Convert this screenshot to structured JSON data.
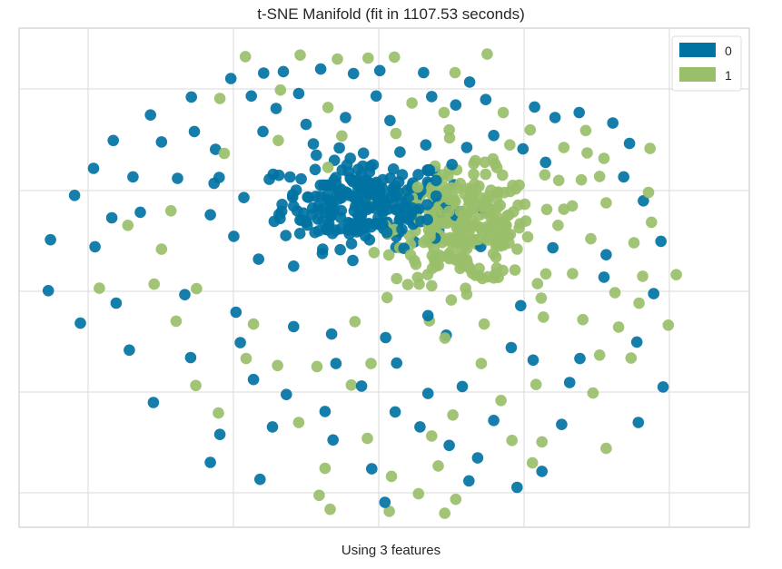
{
  "chart_data": {
    "type": "scatter",
    "title": "t-SNE Manifold (fit in 1107.53 seconds)",
    "xlabel": "Using 3 features",
    "ylabel": "",
    "xlim": [
      0,
      100
    ],
    "ylim": [
      0,
      100
    ],
    "grid": true,
    "legend_position": "top-right",
    "series": [
      {
        "name": "0",
        "color": "#0173a3",
        "points": []
      },
      {
        "name": "1",
        "color": "#9abf6a",
        "points": []
      }
    ],
    "ring_markers": [
      {
        "x": 29.0,
        "y": 89.9,
        "label": 0
      },
      {
        "x": 33.5,
        "y": 91.0,
        "label": 0
      },
      {
        "x": 36.2,
        "y": 91.3,
        "label": 0
      },
      {
        "x": 41.3,
        "y": 91.8,
        "label": 0
      },
      {
        "x": 45.8,
        "y": 90.9,
        "label": 0
      },
      {
        "x": 49.4,
        "y": 91.5,
        "label": 0
      },
      {
        "x": 55.4,
        "y": 91.1,
        "label": 0
      },
      {
        "x": 61.7,
        "y": 89.2,
        "label": 0
      },
      {
        "x": 23.6,
        "y": 86.2,
        "label": 0
      },
      {
        "x": 31.8,
        "y": 86.4,
        "label": 0
      },
      {
        "x": 35.2,
        "y": 83.9,
        "label": 0
      },
      {
        "x": 38.3,
        "y": 86.9,
        "label": 0
      },
      {
        "x": 48.9,
        "y": 86.4,
        "label": 0
      },
      {
        "x": 56.5,
        "y": 86.3,
        "label": 0
      },
      {
        "x": 59.8,
        "y": 84.6,
        "label": 0
      },
      {
        "x": 63.9,
        "y": 85.7,
        "label": 0
      },
      {
        "x": 70.6,
        "y": 84.2,
        "label": 0
      },
      {
        "x": 76.7,
        "y": 83.1,
        "label": 0
      },
      {
        "x": 81.3,
        "y": 81.0,
        "label": 0
      },
      {
        "x": 18.0,
        "y": 82.6,
        "label": 0
      },
      {
        "x": 24.0,
        "y": 79.3,
        "label": 0
      },
      {
        "x": 33.4,
        "y": 79.3,
        "label": 0
      },
      {
        "x": 39.3,
        "y": 80.7,
        "label": 0
      },
      {
        "x": 44.7,
        "y": 82.1,
        "label": 0
      },
      {
        "x": 50.8,
        "y": 81.5,
        "label": 0
      },
      {
        "x": 65.0,
        "y": 78.5,
        "label": 0
      },
      {
        "x": 73.4,
        "y": 82.1,
        "label": 0
      },
      {
        "x": 83.6,
        "y": 76.9,
        "label": 0
      },
      {
        "x": 12.9,
        "y": 77.5,
        "label": 0
      },
      {
        "x": 19.5,
        "y": 77.2,
        "label": 0
      },
      {
        "x": 26.9,
        "y": 75.7,
        "label": 0
      },
      {
        "x": 40.3,
        "y": 76.8,
        "label": 0
      },
      {
        "x": 55.7,
        "y": 76.6,
        "label": 0
      },
      {
        "x": 61.3,
        "y": 76.1,
        "label": 0
      },
      {
        "x": 69.0,
        "y": 75.8,
        "label": 0
      },
      {
        "x": 72.1,
        "y": 73.1,
        "label": 0
      },
      {
        "x": 82.8,
        "y": 70.2,
        "label": 0
      },
      {
        "x": 10.2,
        "y": 71.9,
        "label": 0
      },
      {
        "x": 15.6,
        "y": 70.2,
        "label": 0
      },
      {
        "x": 21.7,
        "y": 69.9,
        "label": 0
      },
      {
        "x": 26.7,
        "y": 68.9,
        "label": 0
      },
      {
        "x": 34.8,
        "y": 70.7,
        "label": 0
      },
      {
        "x": 85.5,
        "y": 65.4,
        "label": 0
      },
      {
        "x": 7.6,
        "y": 66.5,
        "label": 0
      },
      {
        "x": 12.7,
        "y": 62.0,
        "label": 0
      },
      {
        "x": 16.6,
        "y": 63.1,
        "label": 0
      },
      {
        "x": 26.2,
        "y": 62.6,
        "label": 0
      },
      {
        "x": 29.4,
        "y": 58.3,
        "label": 0
      },
      {
        "x": 80.4,
        "y": 54.6,
        "label": 0
      },
      {
        "x": 4.3,
        "y": 57.6,
        "label": 0
      },
      {
        "x": 10.4,
        "y": 56.2,
        "label": 0
      },
      {
        "x": 32.8,
        "y": 53.7,
        "label": 0
      },
      {
        "x": 37.6,
        "y": 52.3,
        "label": 0
      },
      {
        "x": 73.1,
        "y": 56.0,
        "label": 0
      },
      {
        "x": 87.9,
        "y": 57.3,
        "label": 0
      },
      {
        "x": 4.0,
        "y": 47.4,
        "label": 0
      },
      {
        "x": 8.4,
        "y": 40.9,
        "label": 0
      },
      {
        "x": 13.3,
        "y": 44.9,
        "label": 0
      },
      {
        "x": 22.7,
        "y": 46.6,
        "label": 0
      },
      {
        "x": 29.7,
        "y": 43.1,
        "label": 0
      },
      {
        "x": 37.6,
        "y": 40.2,
        "label": 0
      },
      {
        "x": 42.8,
        "y": 38.7,
        "label": 0
      },
      {
        "x": 50.2,
        "y": 38.0,
        "label": 0
      },
      {
        "x": 56.0,
        "y": 42.4,
        "label": 0
      },
      {
        "x": 68.7,
        "y": 44.4,
        "label": 0
      },
      {
        "x": 80.1,
        "y": 50.1,
        "label": 0
      },
      {
        "x": 86.9,
        "y": 46.8,
        "label": 0
      },
      {
        "x": 15.1,
        "y": 35.5,
        "label": 0
      },
      {
        "x": 23.5,
        "y": 34.0,
        "label": 0
      },
      {
        "x": 30.3,
        "y": 37.0,
        "label": 0
      },
      {
        "x": 43.4,
        "y": 32.8,
        "label": 0
      },
      {
        "x": 51.7,
        "y": 32.9,
        "label": 0
      },
      {
        "x": 58.5,
        "y": 38.5,
        "label": 0
      },
      {
        "x": 67.4,
        "y": 36.0,
        "label": 0
      },
      {
        "x": 70.4,
        "y": 33.5,
        "label": 0
      },
      {
        "x": 76.8,
        "y": 33.8,
        "label": 0
      },
      {
        "x": 84.6,
        "y": 37.1,
        "label": 0
      },
      {
        "x": 32.1,
        "y": 29.6,
        "label": 0
      },
      {
        "x": 36.6,
        "y": 26.6,
        "label": 0
      },
      {
        "x": 46.9,
        "y": 28.3,
        "label": 0
      },
      {
        "x": 51.5,
        "y": 23.1,
        "label": 0
      },
      {
        "x": 56.0,
        "y": 26.8,
        "label": 0
      },
      {
        "x": 60.7,
        "y": 28.2,
        "label": 0
      },
      {
        "x": 75.4,
        "y": 29.0,
        "label": 0
      },
      {
        "x": 88.2,
        "y": 28.1,
        "label": 0
      },
      {
        "x": 18.4,
        "y": 25.0,
        "label": 0
      },
      {
        "x": 34.7,
        "y": 20.1,
        "label": 0
      },
      {
        "x": 41.9,
        "y": 23.2,
        "label": 0
      },
      {
        "x": 54.9,
        "y": 20.1,
        "label": 0
      },
      {
        "x": 65.0,
        "y": 21.4,
        "label": 0
      },
      {
        "x": 74.3,
        "y": 20.6,
        "label": 0
      },
      {
        "x": 84.8,
        "y": 21.0,
        "label": 0
      },
      {
        "x": 27.5,
        "y": 18.6,
        "label": 0
      },
      {
        "x": 43.0,
        "y": 17.5,
        "label": 0
      },
      {
        "x": 58.9,
        "y": 16.4,
        "label": 0
      },
      {
        "x": 62.8,
        "y": 13.9,
        "label": 0
      },
      {
        "x": 26.2,
        "y": 13.0,
        "label": 0
      },
      {
        "x": 33.0,
        "y": 9.6,
        "label": 0
      },
      {
        "x": 48.3,
        "y": 11.7,
        "label": 0
      },
      {
        "x": 61.6,
        "y": 9.3,
        "label": 0
      },
      {
        "x": 71.6,
        "y": 11.2,
        "label": 0
      },
      {
        "x": 50.1,
        "y": 5.0,
        "label": 0
      },
      {
        "x": 68.2,
        "y": 8.0,
        "label": 0
      },
      {
        "x": 31.0,
        "y": 94.3,
        "label": 1
      },
      {
        "x": 38.5,
        "y": 94.6,
        "label": 1
      },
      {
        "x": 43.6,
        "y": 93.8,
        "label": 1
      },
      {
        "x": 47.8,
        "y": 94.0,
        "label": 1
      },
      {
        "x": 51.4,
        "y": 94.2,
        "label": 1
      },
      {
        "x": 59.7,
        "y": 91.1,
        "label": 1
      },
      {
        "x": 64.1,
        "y": 94.8,
        "label": 1
      },
      {
        "x": 27.5,
        "y": 85.9,
        "label": 1
      },
      {
        "x": 35.8,
        "y": 87.6,
        "label": 1
      },
      {
        "x": 42.3,
        "y": 84.1,
        "label": 1
      },
      {
        "x": 53.8,
        "y": 85.0,
        "label": 1
      },
      {
        "x": 58.2,
        "y": 83.1,
        "label": 1
      },
      {
        "x": 66.3,
        "y": 83.1,
        "label": 1
      },
      {
        "x": 70.0,
        "y": 79.6,
        "label": 1
      },
      {
        "x": 77.6,
        "y": 79.5,
        "label": 1
      },
      {
        "x": 35.5,
        "y": 77.5,
        "label": 1
      },
      {
        "x": 44.2,
        "y": 78.4,
        "label": 1
      },
      {
        "x": 51.6,
        "y": 78.9,
        "label": 1
      },
      {
        "x": 58.9,
        "y": 79.6,
        "label": 1
      },
      {
        "x": 64.9,
        "y": 73.8,
        "label": 1
      },
      {
        "x": 74.6,
        "y": 76.1,
        "label": 1
      },
      {
        "x": 86.4,
        "y": 75.9,
        "label": 1
      },
      {
        "x": 28.1,
        "y": 74.9,
        "label": 1
      },
      {
        "x": 42.3,
        "y": 72.1,
        "label": 1
      },
      {
        "x": 67.2,
        "y": 76.6,
        "label": 1
      },
      {
        "x": 77.8,
        "y": 75.0,
        "label": 1
      },
      {
        "x": 80.1,
        "y": 73.9,
        "label": 1
      },
      {
        "x": 72.0,
        "y": 70.6,
        "label": 1
      },
      {
        "x": 73.9,
        "y": 69.5,
        "label": 1
      },
      {
        "x": 77.0,
        "y": 69.6,
        "label": 1
      },
      {
        "x": 79.5,
        "y": 70.3,
        "label": 1
      },
      {
        "x": 86.2,
        "y": 67.1,
        "label": 1
      },
      {
        "x": 20.8,
        "y": 63.4,
        "label": 1
      },
      {
        "x": 74.6,
        "y": 63.7,
        "label": 1
      },
      {
        "x": 80.4,
        "y": 65.0,
        "label": 1
      },
      {
        "x": 86.6,
        "y": 61.1,
        "label": 1
      },
      {
        "x": 14.9,
        "y": 60.5,
        "label": 1
      },
      {
        "x": 19.5,
        "y": 55.7,
        "label": 1
      },
      {
        "x": 73.8,
        "y": 60.5,
        "label": 1
      },
      {
        "x": 78.3,
        "y": 57.8,
        "label": 1
      },
      {
        "x": 84.2,
        "y": 57.0,
        "label": 1
      },
      {
        "x": 90.0,
        "y": 50.6,
        "label": 1
      },
      {
        "x": 11.0,
        "y": 47.9,
        "label": 1
      },
      {
        "x": 18.5,
        "y": 48.7,
        "label": 1
      },
      {
        "x": 24.3,
        "y": 47.8,
        "label": 1
      },
      {
        "x": 71.0,
        "y": 48.8,
        "label": 1
      },
      {
        "x": 75.8,
        "y": 50.8,
        "label": 1
      },
      {
        "x": 81.6,
        "y": 47.0,
        "label": 1
      },
      {
        "x": 85.4,
        "y": 50.3,
        "label": 1
      },
      {
        "x": 21.5,
        "y": 41.3,
        "label": 1
      },
      {
        "x": 32.1,
        "y": 40.7,
        "label": 1
      },
      {
        "x": 46.0,
        "y": 41.2,
        "label": 1
      },
      {
        "x": 63.7,
        "y": 40.7,
        "label": 1
      },
      {
        "x": 71.8,
        "y": 42.1,
        "label": 1
      },
      {
        "x": 77.2,
        "y": 41.6,
        "label": 1
      },
      {
        "x": 82.1,
        "y": 40.1,
        "label": 1
      },
      {
        "x": 84.9,
        "y": 44.9,
        "label": 1
      },
      {
        "x": 88.9,
        "y": 40.5,
        "label": 1
      },
      {
        "x": 31.1,
        "y": 33.8,
        "label": 1
      },
      {
        "x": 35.4,
        "y": 32.4,
        "label": 1
      },
      {
        "x": 40.8,
        "y": 32.2,
        "label": 1
      },
      {
        "x": 48.2,
        "y": 32.8,
        "label": 1
      },
      {
        "x": 63.3,
        "y": 32.8,
        "label": 1
      },
      {
        "x": 79.5,
        "y": 34.5,
        "label": 1
      },
      {
        "x": 83.8,
        "y": 33.9,
        "label": 1
      },
      {
        "x": 24.2,
        "y": 28.4,
        "label": 1
      },
      {
        "x": 45.5,
        "y": 28.5,
        "label": 1
      },
      {
        "x": 59.4,
        "y": 22.5,
        "label": 1
      },
      {
        "x": 66.0,
        "y": 25.4,
        "label": 1
      },
      {
        "x": 70.8,
        "y": 28.6,
        "label": 1
      },
      {
        "x": 78.6,
        "y": 26.9,
        "label": 1
      },
      {
        "x": 27.3,
        "y": 22.9,
        "label": 1
      },
      {
        "x": 38.3,
        "y": 21.0,
        "label": 1
      },
      {
        "x": 47.7,
        "y": 17.8,
        "label": 1
      },
      {
        "x": 56.5,
        "y": 18.3,
        "label": 1
      },
      {
        "x": 71.6,
        "y": 17.1,
        "label": 1
      },
      {
        "x": 80.4,
        "y": 15.8,
        "label": 1
      },
      {
        "x": 41.9,
        "y": 11.8,
        "label": 1
      },
      {
        "x": 51.0,
        "y": 10.2,
        "label": 1
      },
      {
        "x": 57.4,
        "y": 12.3,
        "label": 1
      },
      {
        "x": 67.5,
        "y": 17.4,
        "label": 1
      },
      {
        "x": 41.1,
        "y": 6.4,
        "label": 1
      },
      {
        "x": 54.7,
        "y": 6.7,
        "label": 1
      },
      {
        "x": 59.8,
        "y": 5.6,
        "label": 1
      },
      {
        "x": 70.3,
        "y": 12.9,
        "label": 1
      },
      {
        "x": 42.6,
        "y": 3.6,
        "label": 1
      },
      {
        "x": 50.7,
        "y": 3.2,
        "label": 1
      },
      {
        "x": 58.3,
        "y": 2.8,
        "label": 1
      }
    ],
    "dense_cluster": [
      {
        "x": 47.5,
        "y": 65.0,
        "spread_x": 10.5,
        "spread_y": 8.0,
        "label": 0,
        "count": 260
      },
      {
        "x": 61.0,
        "y": 60.0,
        "spread_x": 8.5,
        "spread_y": 10.0,
        "label": 1,
        "count": 280
      }
    ]
  },
  "legend": {
    "items": [
      {
        "label": "0",
        "color": "#0173a3"
      },
      {
        "label": "1",
        "color": "#9abf6a"
      }
    ]
  }
}
